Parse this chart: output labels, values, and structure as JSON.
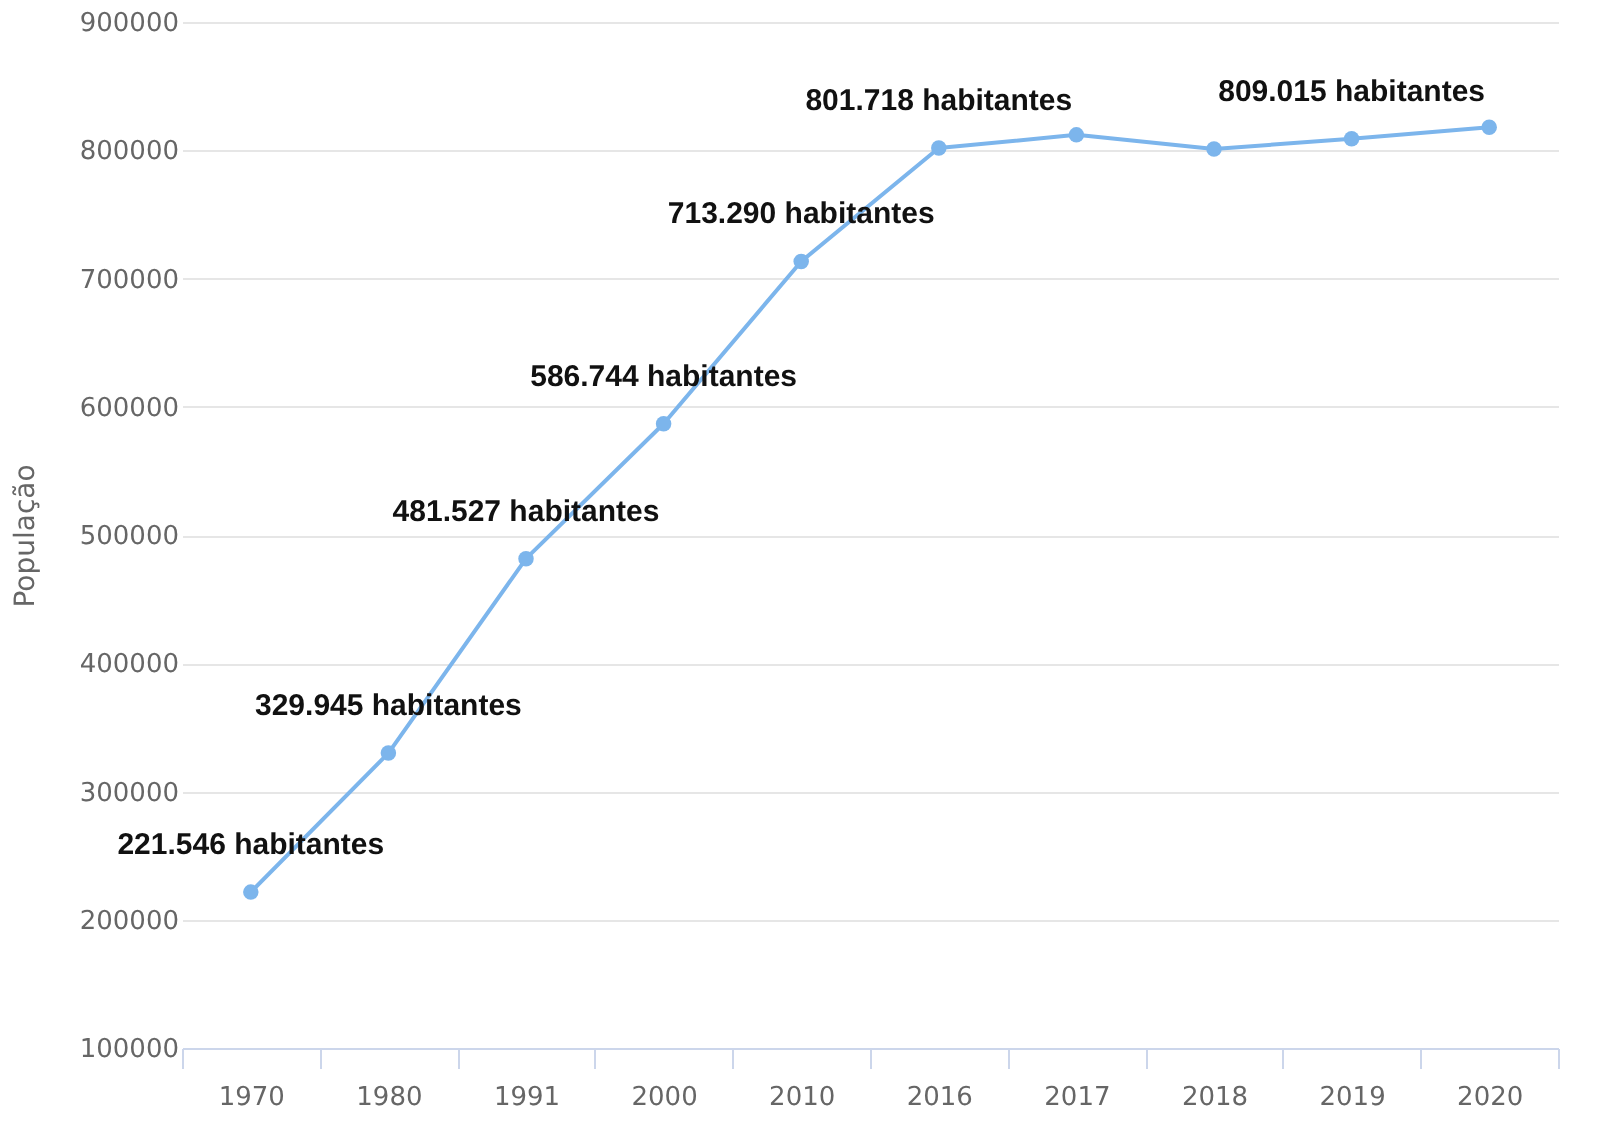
{
  "chart_data": {
    "type": "line",
    "ylabel": "População",
    "categories": [
      "1970",
      "1980",
      "1991",
      "2000",
      "2010",
      "2016",
      "2017",
      "2018",
      "2019",
      "2020"
    ],
    "series": [
      {
        "color": "#7cb5ec",
        "values": [
          221546,
          329945,
          481527,
          586744,
          713290,
          801718,
          812000,
          801000,
          809015,
          818000
        ],
        "value_labels": [
          "221.546 habitantes",
          "329.945 habitantes",
          "481.527 habitantes",
          "586.744 habitantes",
          "713.290 habitantes",
          "801.718 habitantes",
          null,
          null,
          "809.015 habitantes",
          null
        ]
      }
    ],
    "ylim": [
      100000,
      900000
    ],
    "yticks": [
      100000,
      200000,
      300000,
      400000,
      500000,
      600000,
      700000,
      800000,
      900000
    ],
    "grid": "y",
    "marker": "circle",
    "line_style": "solid"
  }
}
